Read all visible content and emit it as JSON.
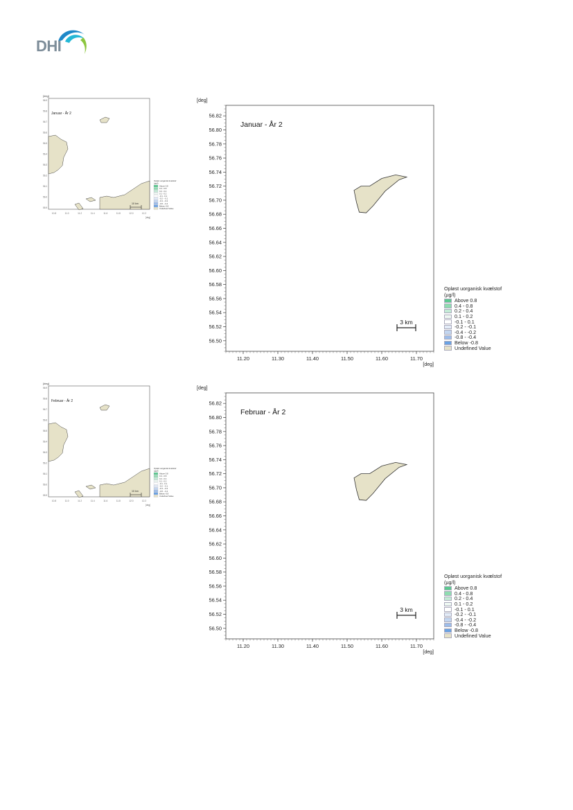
{
  "brand": {
    "logo_text": "DHI",
    "colors": {
      "logo_text": "#7d8d99",
      "logo_blue": "#1e88c8",
      "logo_cyan": "#24b8d6",
      "logo_green": "#8cc63f"
    }
  },
  "land_color": "#e6e2c8",
  "maps": [
    {
      "title": "Januar - År 2",
      "thumbnail_title": "Januar - År 2"
    },
    {
      "title": "Februar - År 2",
      "thumbnail_title": "Februar - År 2"
    }
  ],
  "axes": {
    "x_unit": "[deg]",
    "y_unit": "[deg]",
    "x_ticks": [
      "11.20",
      "11.30",
      "11.40",
      "11.50",
      "11.60",
      "11.70"
    ],
    "y_ticks": [
      "56.82",
      "56.80",
      "56.78",
      "56.76",
      "56.74",
      "56.72",
      "56.70",
      "56.68",
      "56.66",
      "56.64",
      "56.62",
      "56.60",
      "56.58",
      "56.56",
      "56.54",
      "56.52",
      "56.50"
    ],
    "x_range": [
      11.15,
      11.75
    ],
    "y_range": [
      56.485,
      56.835
    ]
  },
  "scale_bar": {
    "label": "3 km",
    "length_km": 3
  },
  "thumbnail_scale_bar": {
    "label": "10 km"
  },
  "legend": {
    "title": "Opløst uorganisk kvælstof",
    "unit": "(µg/l)",
    "items": [
      {
        "label": "Above  0.8",
        "color": "#5cc98f"
      },
      {
        "label": "0.4 -  0.8",
        "color": "#8fdcb0"
      },
      {
        "label": "0.2 -  0.4",
        "color": "#c4ecd6"
      },
      {
        "label": "0.1 -  0.2",
        "color": "#eef8f2"
      },
      {
        "label": "-0.1 -  0.1",
        "color": "#ffffff"
      },
      {
        "label": "-0.2 - -0.1",
        "color": "#e3ecf8"
      },
      {
        "label": "-0.4 - -0.2",
        "color": "#c3d6f0"
      },
      {
        "label": "-0.8 - -0.4",
        "color": "#9dbdea"
      },
      {
        "label": "Below -0.8",
        "color": "#6aa2e3"
      },
      {
        "label": "Undefined Value",
        "color": "#e6e2c8"
      }
    ]
  },
  "thumbnail_axes": {
    "y_ticks": [
      "56.9",
      "56.8",
      "56.7",
      "56.6",
      "56.5",
      "56.4",
      "56.3",
      "56.2",
      "56.1",
      "56.0",
      "55.9"
    ],
    "x_ticks": [
      "10.8",
      "11.0",
      "11.2",
      "11.4",
      "11.6",
      "11.8",
      "12.0",
      "12.2"
    ]
  },
  "island": [
    [
      11.52,
      56.714
    ],
    [
      11.54,
      56.72
    ],
    [
      11.565,
      56.72
    ],
    [
      11.6,
      56.731
    ],
    [
      11.64,
      56.736
    ],
    [
      11.672,
      56.733
    ],
    [
      11.65,
      56.729
    ],
    [
      11.61,
      56.713
    ],
    [
      11.575,
      56.692
    ],
    [
      11.555,
      56.682
    ],
    [
      11.535,
      56.683
    ],
    [
      11.527,
      56.697
    ]
  ]
}
